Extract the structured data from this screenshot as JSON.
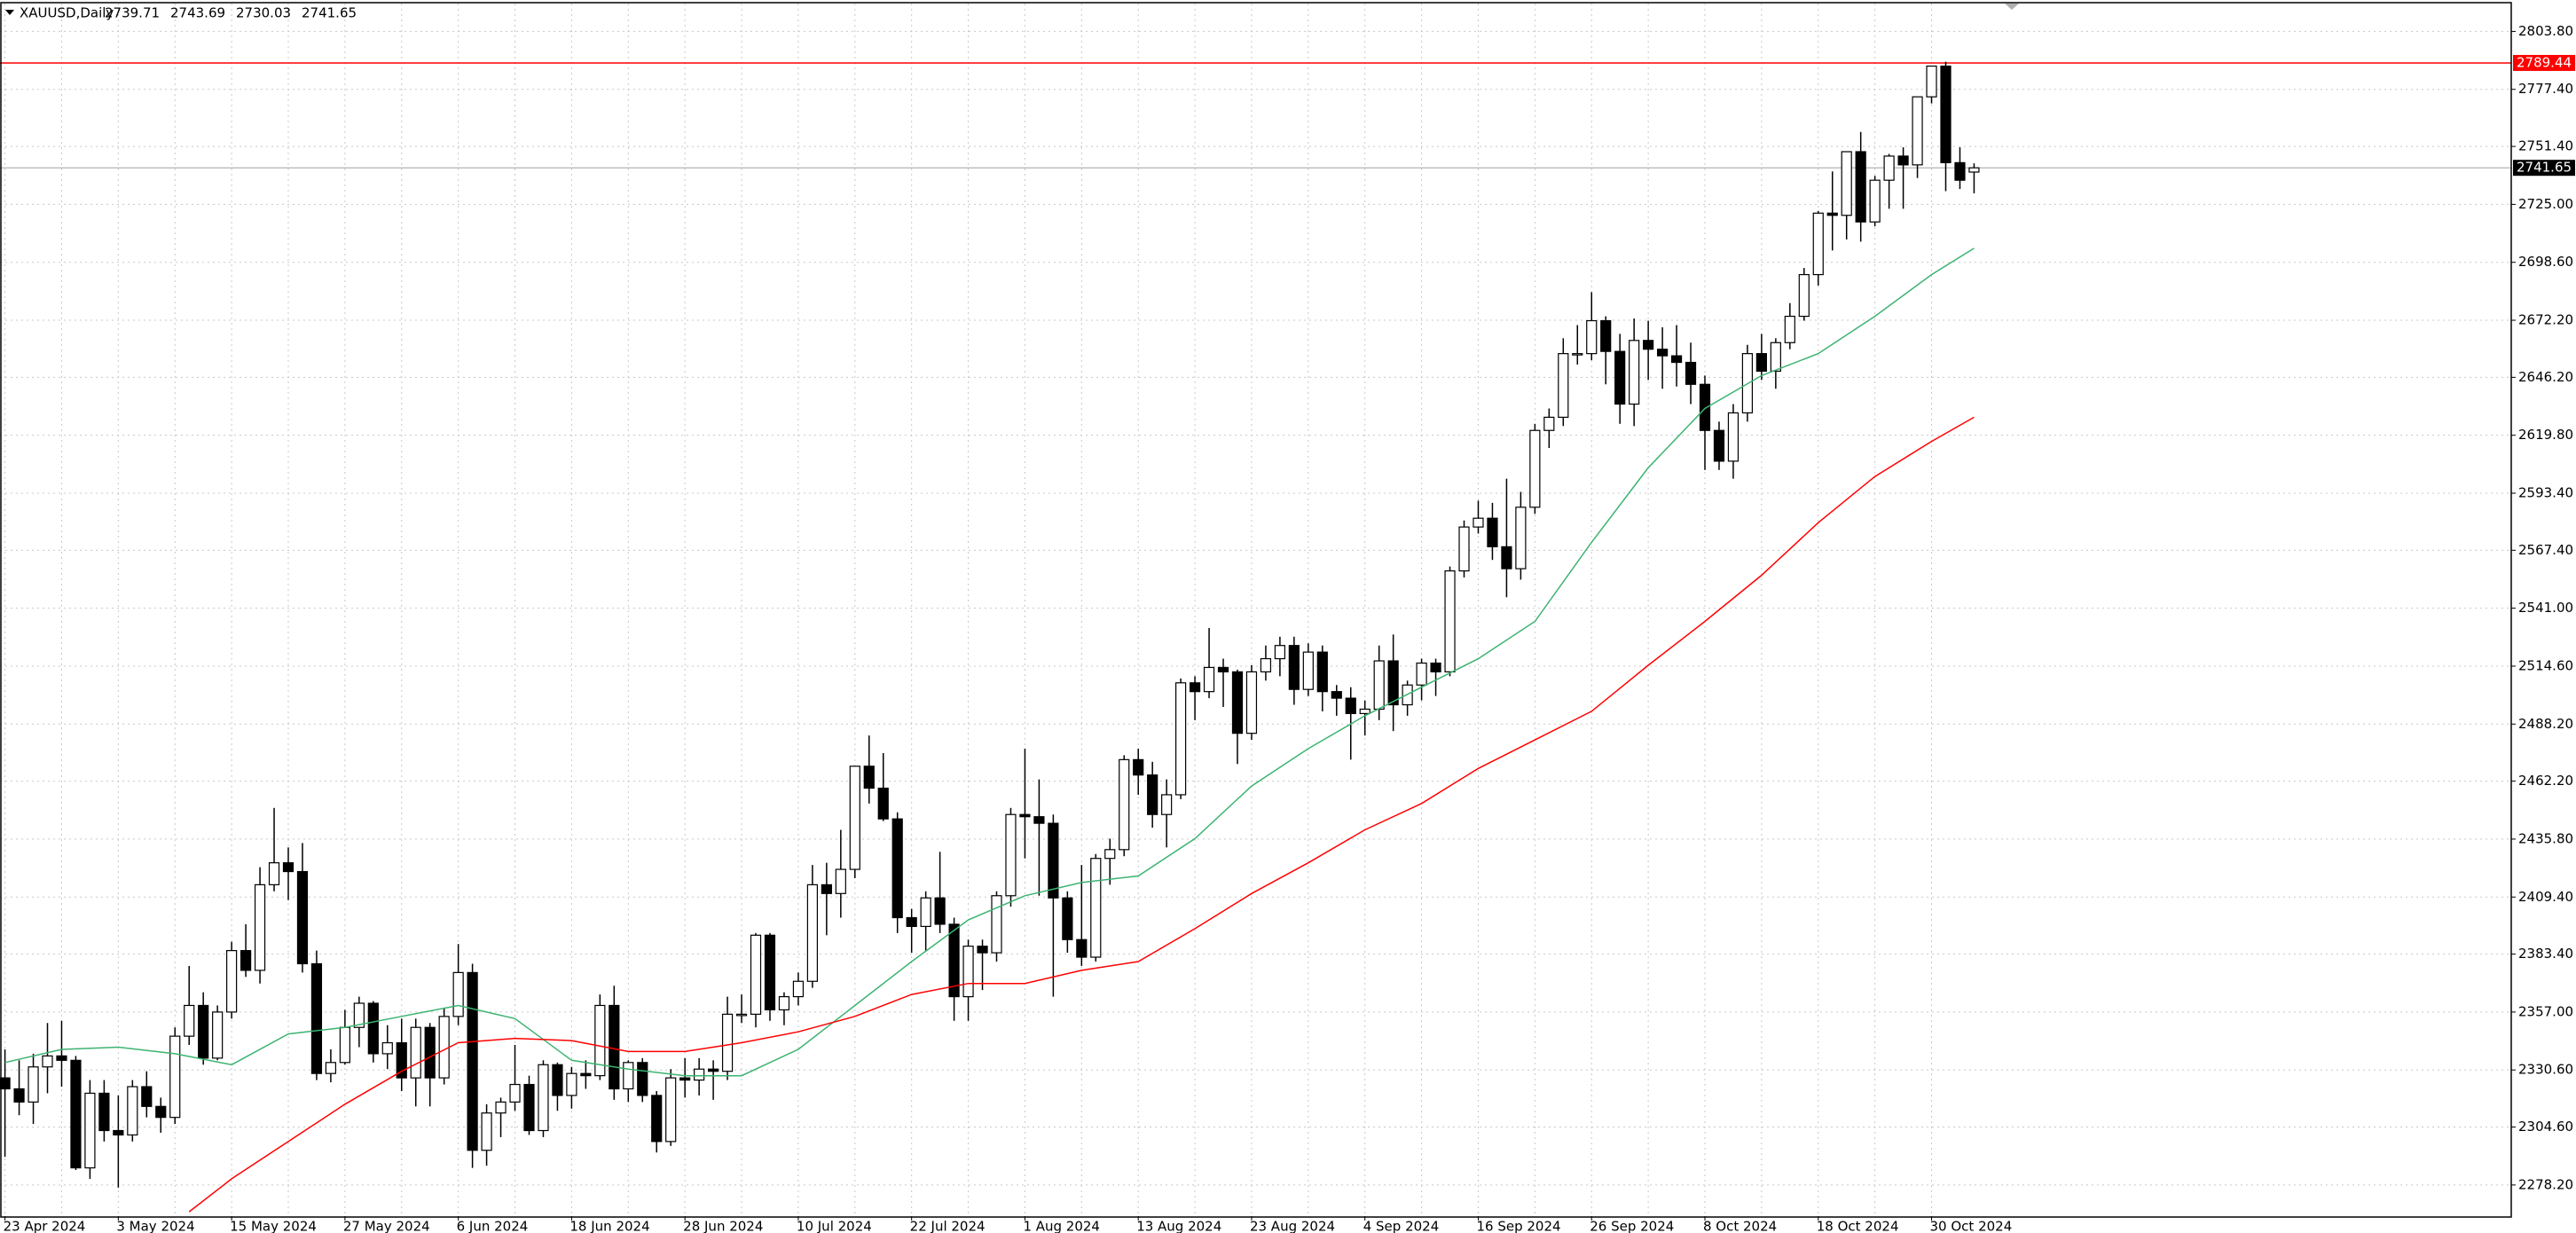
{
  "chart_data": {
    "type": "candlestick",
    "title": "XAUUSD,Daily",
    "categories": [
      "23 Apr 2024",
      null,
      null,
      null,
      null,
      null,
      null,
      null,
      "3 May 2024",
      null,
      null,
      null,
      null,
      null,
      null,
      null,
      "15 May 2024",
      null,
      null,
      null,
      null,
      null,
      null,
      null,
      "27 May 2024",
      null,
      null,
      null,
      null,
      null,
      null,
      null,
      "6 Jun 2024",
      null,
      null,
      null,
      null,
      null,
      null,
      null,
      "18 Jun 2024",
      null,
      null,
      null,
      null,
      null,
      null,
      null,
      "28 Jun 2024",
      null,
      null,
      null,
      null,
      null,
      null,
      null,
      "10 Jul 2024",
      null,
      null,
      null,
      null,
      null,
      null,
      null,
      "22 Jul 2024",
      null,
      null,
      null,
      null,
      null,
      null,
      null,
      "1 Aug 2024",
      null,
      null,
      null,
      null,
      null,
      null,
      null,
      "13 Aug 2024",
      null,
      null,
      null,
      null,
      null,
      null,
      null,
      "23 Aug 2024",
      null,
      null,
      null,
      null,
      null,
      null,
      null,
      "4 Sep 2024",
      null,
      null,
      null,
      null,
      null,
      null,
      null,
      "16 Sep 2024",
      null,
      null,
      null,
      null,
      null,
      null,
      null,
      "26 Sep 2024",
      null,
      null,
      null,
      null,
      null,
      null,
      null,
      "8 Oct 2024",
      null,
      null,
      null,
      null,
      null,
      null,
      null,
      "18 Oct 2024",
      null,
      null,
      null,
      null,
      null,
      null,
      null,
      "30 Oct 2024",
      null,
      null,
      null
    ],
    "open": [
      2327,
      2322,
      2316,
      2332,
      2337,
      2335,
      2286,
      2320,
      2303,
      2301,
      2323,
      2314,
      2309,
      2346,
      2360,
      2336,
      2357,
      2385,
      2376,
      2415,
      2425,
      2421,
      2379,
      2329,
      2334,
      2350,
      2361,
      2338,
      2343,
      2327,
      2350,
      2327,
      2355,
      2375,
      2294,
      2311,
      2316,
      2324,
      2303,
      2333,
      2319,
      2329,
      2328,
      2360,
      2322,
      2334,
      2319,
      2298,
      2327,
      2326,
      2331,
      2330,
      2356,
      2356,
      2392,
      2358,
      2364,
      2371,
      2415,
      2411,
      2422,
      2469,
      2459,
      2445,
      2400,
      2396,
      2409,
      2397,
      2364,
      2387,
      2384,
      2410,
      2447,
      2446,
      2443,
      2409,
      2390,
      2382,
      2427,
      2431,
      2472,
      2465,
      2447,
      2456,
      2507,
      2503,
      2514,
      2512,
      2484,
      2512,
      2518,
      2524,
      2504,
      2521,
      2503,
      2500,
      2493,
      2495,
      2517,
      2497,
      2506,
      2516,
      2512,
      2558,
      2578,
      2582,
      2569,
      2559,
      2587,
      2622,
      2628,
      2657,
      2657,
      2672,
      2658,
      2634,
      2663,
      2659,
      2656,
      2653,
      2643,
      2622,
      2608,
      2630,
      2657,
      2649,
      2662,
      2674,
      2693,
      2721,
      2720,
      2749,
      2717,
      2736,
      2747,
      2743,
      2774,
      2788,
      2744,
      2739.71
    ],
    "high": [
      2340,
      2335,
      2338,
      2352,
      2353,
      2337,
      2326,
      2326,
      2319,
      2326,
      2330,
      2318,
      2350,
      2378,
      2366,
      2360,
      2389,
      2397,
      2423,
      2450,
      2432,
      2434,
      2385,
      2340,
      2358,
      2364,
      2362,
      2351,
      2354,
      2354,
      2352,
      2359,
      2388,
      2379,
      2315,
      2318,
      2342,
      2328,
      2335,
      2334,
      2332,
      2335,
      2365,
      2369,
      2335,
      2336,
      2321,
      2331,
      2336,
      2336,
      2335,
      2364,
      2365,
      2393,
      2393,
      2366,
      2375,
      2424,
      2425,
      2440,
      2469,
      2483,
      2475,
      2448,
      2404,
      2412,
      2430,
      2400,
      2390,
      2390,
      2412,
      2450,
      2477,
      2463,
      2447,
      2412,
      2424,
      2429,
      2436,
      2474,
      2477,
      2471,
      2463,
      2509,
      2510,
      2532,
      2518,
      2513,
      2515,
      2524,
      2528,
      2528,
      2525,
      2524,
      2506,
      2505,
      2499,
      2524,
      2529,
      2508,
      2518,
      2518,
      2560,
      2581,
      2590,
      2589,
      2600,
      2594,
      2625,
      2632,
      2664,
      2670,
      2685,
      2674,
      2666,
      2673,
      2672,
      2669,
      2670,
      2662,
      2647,
      2626,
      2634,
      2661,
      2666,
      2664,
      2680,
      2696,
      2722,
      2740,
      2749,
      2758,
      2738,
      2748,
      2751,
      2774,
      2787,
      2790,
      2751,
      2743.69
    ],
    "low": [
      2291,
      2310,
      2306,
      2320,
      2323,
      2285,
      2281,
      2298,
      2277,
      2298,
      2309,
      2302,
      2306,
      2342,
      2333,
      2335,
      2354,
      2373,
      2370,
      2412,
      2408,
      2375,
      2326,
      2325,
      2333,
      2341,
      2334,
      2331,
      2321,
      2314,
      2314,
      2324,
      2351,
      2286,
      2287,
      2300,
      2312,
      2301,
      2300,
      2312,
      2313,
      2322,
      2326,
      2317,
      2316,
      2316,
      2293,
      2296,
      2318,
      2319,
      2317,
      2326,
      2352,
      2350,
      2353,
      2351,
      2360,
      2368,
      2392,
      2400,
      2418,
      2452,
      2444,
      2393,
      2384,
      2385,
      2393,
      2353,
      2353,
      2367,
      2380,
      2405,
      2427,
      2410,
      2364,
      2384,
      2378,
      2380,
      2415,
      2428,
      2456,
      2441,
      2432,
      2454,
      2490,
      2500,
      2496,
      2470,
      2481,
      2508,
      2510,
      2497,
      2501,
      2494,
      2492,
      2472,
      2483,
      2490,
      2485,
      2492,
      2499,
      2501,
      2510,
      2555,
      2575,
      2563,
      2546,
      2554,
      2584,
      2614,
      2624,
      2652,
      2654,
      2643,
      2625,
      2624,
      2645,
      2641,
      2642,
      2634,
      2604,
      2604,
      2600,
      2626,
      2645,
      2641,
      2659,
      2672,
      2688,
      2704,
      2709,
      2708,
      2715,
      2723,
      2723,
      2737,
      2771,
      2731,
      2732,
      2730.03
    ],
    "close": [
      2322,
      2316,
      2332,
      2337,
      2335,
      2286,
      2320,
      2303,
      2301,
      2323,
      2314,
      2309,
      2346,
      2360,
      2336,
      2357,
      2385,
      2376,
      2415,
      2425,
      2421,
      2379,
      2329,
      2334,
      2350,
      2361,
      2338,
      2343,
      2327,
      2350,
      2327,
      2355,
      2375,
      2294,
      2311,
      2316,
      2324,
      2303,
      2333,
      2319,
      2329,
      2328,
      2360,
      2322,
      2334,
      2319,
      2298,
      2327,
      2326,
      2331,
      2330,
      2356,
      2356,
      2392,
      2358,
      2364,
      2371,
      2415,
      2411,
      2422,
      2469,
      2459,
      2445,
      2400,
      2396,
      2409,
      2397,
      2364,
      2387,
      2384,
      2410,
      2447,
      2446,
      2443,
      2409,
      2390,
      2382,
      2427,
      2431,
      2472,
      2465,
      2447,
      2456,
      2507,
      2503,
      2514,
      2512,
      2484,
      2512,
      2518,
      2524,
      2504,
      2521,
      2503,
      2500,
      2493,
      2495,
      2517,
      2497,
      2506,
      2516,
      2512,
      2558,
      2578,
      2582,
      2569,
      2559,
      2587,
      2622,
      2628,
      2657,
      2657,
      2672,
      2658,
      2634,
      2663,
      2659,
      2656,
      2653,
      2643,
      2622,
      2608,
      2630,
      2657,
      2649,
      2662,
      2674,
      2693,
      2721,
      2720,
      2749,
      2717,
      2736,
      2747,
      2743,
      2774,
      2788,
      2744,
      2736,
      2741.65
    ],
    "series": [
      {
        "color": "#3cb371",
        "x": [
          0,
          4,
          8,
          12,
          16,
          20,
          24,
          28,
          32,
          36,
          40,
          44,
          48,
          52,
          56,
          60,
          64,
          68,
          72,
          76,
          80,
          84,
          88,
          92,
          96,
          100,
          104,
          108,
          112,
          116,
          120,
          124,
          128,
          132,
          136,
          139
        ],
        "values": [
          2334,
          2340,
          2341,
          2338,
          2333,
          2347,
          2350,
          2355,
          2360,
          2354,
          2335,
          2331,
          2328,
          2328,
          2340,
          2360,
          2380,
          2399,
          2410,
          2416,
          2419,
          2436,
          2460,
          2477,
          2492,
          2505,
          2518,
          2535,
          2571,
          2605,
          2632,
          2647,
          2657,
          2674,
          2693,
          2705
        ]
      },
      {
        "color": "#ff0000",
        "x": [
          13,
          16,
          20,
          24,
          28,
          32,
          36,
          40,
          44,
          48,
          52,
          56,
          60,
          64,
          68,
          72,
          76,
          80,
          84,
          88,
          92,
          96,
          100,
          104,
          108,
          112,
          116,
          120,
          124,
          128,
          132,
          136,
          139
        ],
        "values": [
          2266,
          2281,
          2298,
          2315,
          2330,
          2343,
          2345,
          2344,
          2339,
          2339,
          2343,
          2348,
          2355,
          2365,
          2370,
          2370,
          2376,
          2380,
          2395,
          2411,
          2425,
          2440,
          2452,
          2468,
          2481,
          2494,
          2515,
          2535,
          2556,
          2580,
          2601,
          2617,
          2628
        ]
      }
    ],
    "hlines": [
      {
        "value": 2789.44,
        "label": "2789.44",
        "color": "#ff0000",
        "label_bg": "#ff0000"
      },
      {
        "value": 2741.65,
        "label": "2741.65",
        "color": "#c0c0c0",
        "label_bg": "#000000"
      }
    ],
    "ylim": [
      2264,
      2816.5
    ],
    "yticks": [
      {
        "value": 2803.8,
        "label": "2803.80"
      },
      {
        "value": 2777.4,
        "label": "2777.40"
      },
      {
        "value": 2751.4,
        "label": "2751.40"
      },
      {
        "value": 2725,
        "label": "2725.00"
      },
      {
        "value": 2698.6,
        "label": "2698.60"
      },
      {
        "value": 2672.2,
        "label": "2672.20"
      },
      {
        "value": 2646.2,
        "label": "2646.20"
      },
      {
        "value": 2619.8,
        "label": "2619.80"
      },
      {
        "value": 2593.4,
        "label": "2593.40"
      },
      {
        "value": 2567.4,
        "label": "2567.40"
      },
      {
        "value": 2541,
        "label": "2541.00"
      },
      {
        "value": 2514.6,
        "label": "2514.60"
      },
      {
        "value": 2488.2,
        "label": "2488.20"
      },
      {
        "value": 2462.2,
        "label": "2462.20"
      },
      {
        "value": 2435.8,
        "label": "2435.80"
      },
      {
        "value": 2409.4,
        "label": "2409.40"
      },
      {
        "value": 2383.4,
        "label": "2383.40"
      },
      {
        "value": 2357,
        "label": "2357.00"
      },
      {
        "value": 2330.6,
        "label": "2330.60"
      },
      {
        "value": 2304.6,
        "label": "2304.60"
      },
      {
        "value": 2278.2,
        "label": "2278.20"
      }
    ],
    "grid": true
  }
}
